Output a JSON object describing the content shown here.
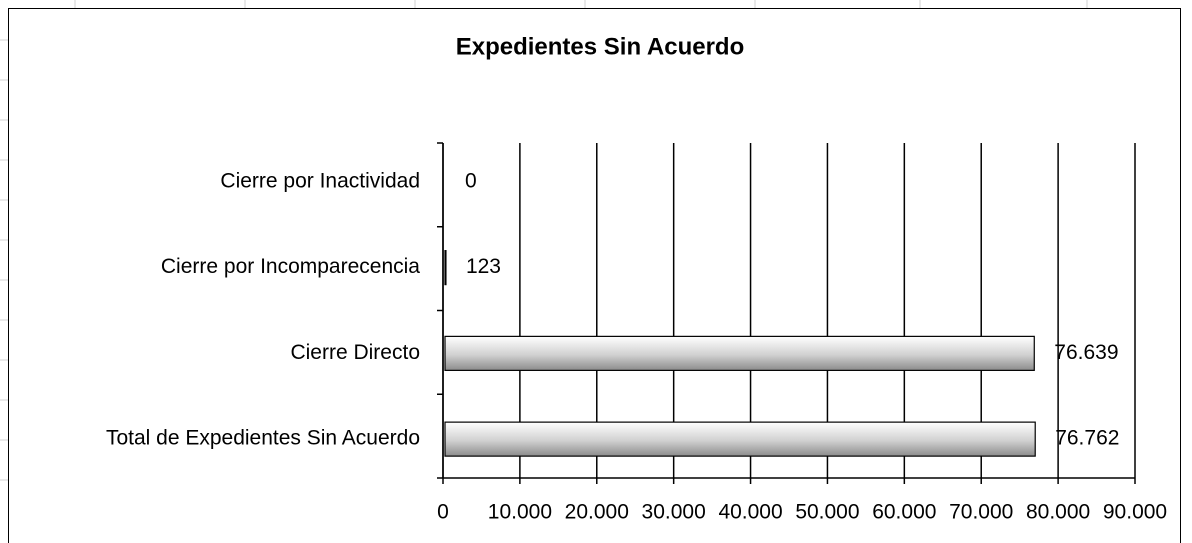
{
  "chart_data": {
    "type": "bar",
    "orientation": "horizontal",
    "title": "Expedientes Sin Acuerdo",
    "categories": [
      "Cierre por Inactividad",
      "Cierre por Incomparecencia",
      "Cierre Directo",
      "Total de Expedientes Sin Acuerdo"
    ],
    "values": [
      0,
      123,
      76639,
      76762
    ],
    "value_labels": [
      "0",
      "123",
      "76.639",
      "76.762"
    ],
    "color": "#c0c0c0",
    "xlim": [
      0,
      90000
    ],
    "xticks": [
      0,
      {
        "value": 10000,
        "label": "10.000"
      },
      {
        "value": 20000,
        "label": "20.000"
      },
      {
        "value": 30000,
        "label": "30.000"
      },
      {
        "value": 40000,
        "label": "40.000"
      },
      {
        "value": 50000,
        "label": "50.000"
      },
      {
        "value": 60000,
        "label": "60.000"
      },
      {
        "value": 70000,
        "label": "70.000"
      },
      {
        "value": 80000,
        "label": "80.000"
      },
      {
        "value": 90000,
        "label": "90.000"
      }
    ],
    "grid": true
  }
}
